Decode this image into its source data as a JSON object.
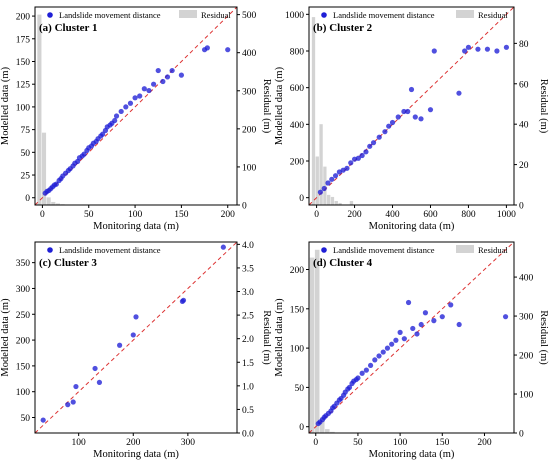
{
  "chart_data": [
    {
      "type": "scatter",
      "title": "(a) Cluster 1",
      "xlabel": "Monitoring data (m)",
      "ylabel": "Modelled data (m)",
      "y2label": "Residual (m)",
      "xlim": [
        -8,
        210
      ],
      "ylim": [
        -8,
        210
      ],
      "y2lim": [
        0,
        520
      ],
      "xticks": [
        "0",
        "50",
        "100",
        "150",
        "200"
      ],
      "yticks": [
        "0",
        "25",
        "50",
        "75",
        "100",
        "125",
        "150",
        "175",
        "200"
      ],
      "y2ticks": [
        "0",
        "100",
        "200",
        "300",
        "400",
        "500"
      ],
      "legend": [
        "Landslide movement distance",
        "Residual"
      ],
      "series": [
        {
          "name": "Landslide movement distance",
          "type": "scatter",
          "x": [
            3,
            5,
            7,
            9,
            11,
            13,
            15,
            18,
            20,
            22,
            25,
            28,
            30,
            33,
            35,
            38,
            40,
            43,
            45,
            48,
            50,
            53,
            55,
            58,
            60,
            63,
            65,
            68,
            70,
            73,
            75,
            78,
            80,
            85,
            90,
            95,
            100,
            105,
            110,
            115,
            120,
            125,
            130,
            135,
            140,
            150,
            175,
            178,
            200
          ],
          "y": [
            5,
            7,
            8,
            10,
            12,
            14,
            15,
            19,
            21,
            24,
            27,
            30,
            32,
            35,
            38,
            40,
            44,
            46,
            48,
            52,
            55,
            57,
            60,
            62,
            65,
            68,
            70,
            74,
            78,
            80,
            82,
            85,
            90,
            95,
            100,
            104,
            110,
            112,
            120,
            118,
            125,
            140,
            128,
            133,
            140,
            135,
            163,
            165,
            163
          ]
        },
        {
          "name": "Residual",
          "type": "bar",
          "x": [
            -3,
            2,
            7,
            12,
            17,
            22,
            27,
            32,
            37,
            42,
            47,
            52
          ],
          "y": [
            500,
            190,
            20,
            8,
            4,
            2,
            1,
            0,
            0,
            0,
            0,
            0
          ]
        }
      ]
    },
    {
      "type": "scatter",
      "title": "(b) Cluster 2",
      "xlabel": "Monitoring data (m)",
      "ylabel": "Modelled data (m)",
      "y2label": "Residual (m)",
      "xlim": [
        -40,
        1040
      ],
      "ylim": [
        -40,
        1040
      ],
      "y2lim": [
        0,
        98
      ],
      "xticks": [
        "0",
        "200",
        "400",
        "600",
        "800",
        "1000"
      ],
      "yticks": [
        "0",
        "200",
        "400",
        "600",
        "800",
        "1000"
      ],
      "y2ticks": [
        "0",
        "20",
        "40",
        "60",
        "80"
      ],
      "legend": [
        "Landslide movement distance",
        "Residual"
      ],
      "series": [
        {
          "name": "Landslide movement distance",
          "type": "scatter",
          "x": [
            20,
            40,
            60,
            80,
            100,
            120,
            140,
            160,
            180,
            200,
            220,
            240,
            260,
            280,
            300,
            330,
            360,
            380,
            400,
            430,
            460,
            480,
            500,
            520,
            550,
            600,
            620,
            750,
            780,
            800,
            850,
            900,
            950,
            1000
          ],
          "y": [
            30,
            50,
            80,
            100,
            120,
            140,
            150,
            160,
            190,
            210,
            215,
            230,
            250,
            280,
            300,
            330,
            360,
            390,
            410,
            440,
            470,
            470,
            590,
            440,
            430,
            480,
            800,
            570,
            800,
            820,
            810,
            810,
            800,
            820
          ]
        },
        {
          "name": "Residual",
          "type": "bar",
          "x": [
            -15,
            5,
            25,
            45,
            65,
            85,
            105,
            125,
            145,
            165,
            185
          ],
          "y": [
            93,
            24,
            40,
            19,
            5,
            4,
            2,
            1,
            0,
            0,
            2
          ]
        }
      ]
    },
    {
      "type": "scatter",
      "title": "(c) Cluster 3",
      "xlabel": "Monitoring data (m)",
      "ylabel": "Modelled data (m)",
      "y2label": "Residual (m)",
      "xlim": [
        20,
        390
      ],
      "ylim": [
        20,
        390
      ],
      "y2lim": [
        0,
        4.05
      ],
      "xticks": [
        "100",
        "200",
        "300"
      ],
      "yticks": [
        "50",
        "100",
        "150",
        "200",
        "250",
        "300",
        "350"
      ],
      "y2ticks": [
        "0.0",
        "0.5",
        "1.0",
        "1.5",
        "2.0",
        "2.5",
        "3.0",
        "3.5",
        "4.0"
      ],
      "legend": [
        "Landslide movement distance"
      ],
      "series": [
        {
          "name": "Landslide movement distance",
          "type": "scatter",
          "x": [
            35,
            80,
            90,
            95,
            130,
            138,
            175,
            200,
            205,
            290,
            292,
            365
          ],
          "y": [
            45,
            75,
            80,
            110,
            145,
            118,
            190,
            210,
            245,
            275,
            277,
            380
          ]
        }
      ]
    },
    {
      "type": "scatter",
      "title": "(d) Cluster 4",
      "xlabel": "Monitoring data (m)",
      "ylabel": "Modelled data (m)",
      "y2label": "Residual (m)",
      "xlim": [
        -8,
        235
      ],
      "ylim": [
        -8,
        235
      ],
      "y2lim": [
        0,
        490
      ],
      "xticks": [
        "0",
        "50",
        "100",
        "150",
        "200"
      ],
      "yticks": [
        "0",
        "50",
        "100",
        "150",
        "200"
      ],
      "y2ticks": [
        "0",
        "100",
        "200",
        "300",
        "400"
      ],
      "legend": [
        "Landslide movement distance",
        "Residual"
      ],
      "series": [
        {
          "name": "Landslide movement distance",
          "type": "scatter",
          "x": [
            3,
            5,
            8,
            10,
            12,
            15,
            18,
            20,
            22,
            25,
            28,
            30,
            33,
            35,
            38,
            40,
            43,
            45,
            48,
            50,
            55,
            60,
            65,
            70,
            75,
            80,
            85,
            90,
            95,
            100,
            105,
            110,
            115,
            120,
            125,
            130,
            140,
            150,
            160,
            170,
            225
          ],
          "y": [
            4,
            6,
            9,
            12,
            14,
            17,
            20,
            24,
            26,
            30,
            34,
            36,
            40,
            44,
            48,
            50,
            55,
            58,
            60,
            62,
            68,
            72,
            78,
            85,
            90,
            95,
            100,
            105,
            110,
            120,
            112,
            158,
            125,
            118,
            130,
            145,
            135,
            140,
            155,
            130,
            140
          ]
        },
        {
          "name": "Residual",
          "type": "bar",
          "x": [
            -4,
            2,
            8,
            14,
            20,
            26
          ],
          "y": [
            450,
            470,
            40,
            10,
            3,
            1
          ]
        }
      ]
    }
  ]
}
